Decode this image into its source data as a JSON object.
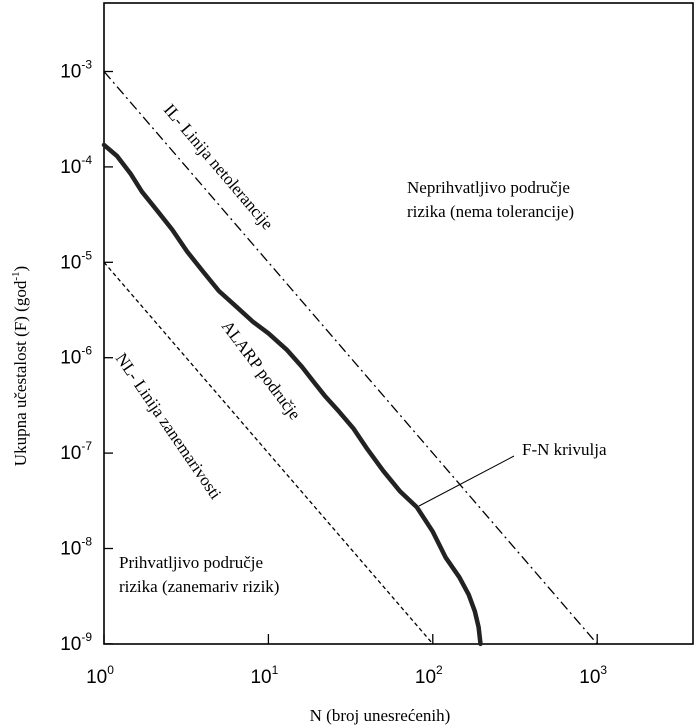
{
  "chart_data": {
    "type": "line",
    "title": "",
    "xlabel": "N (broj unesrećenih)",
    "ylabel": "Ukupna učestalost (F) (god",
    "ylabel_superscript": "-1",
    "ylabel_close": ")",
    "x_scale": "log",
    "y_scale": "log",
    "xlim": [
      1,
      4500
    ],
    "ylim": [
      1e-09,
      0.001
    ],
    "x_ticks": [
      {
        "base": "10",
        "exp": "0",
        "value": 1
      },
      {
        "base": "10",
        "exp": "1",
        "value": 10
      },
      {
        "base": "10",
        "exp": "2",
        "value": 100
      },
      {
        "base": "10",
        "exp": "3",
        "value": 1000
      }
    ],
    "y_ticks": [
      {
        "base": "10",
        "exp": "-3",
        "value": 0.001
      },
      {
        "base": "10",
        "exp": "-4",
        "value": 0.0001
      },
      {
        "base": "10",
        "exp": "-5",
        "value": 1e-05
      },
      {
        "base": "10",
        "exp": "-6",
        "value": 1e-06
      },
      {
        "base": "10",
        "exp": "-7",
        "value": 1e-07
      },
      {
        "base": "10",
        "exp": "-8",
        "value": 1e-08
      },
      {
        "base": "10",
        "exp": "-9",
        "value": 1e-09
      }
    ],
    "grid": false,
    "legend": "none",
    "series": [
      {
        "key": "il",
        "style": "dash-dot",
        "x": [
          1,
          1000
        ],
        "y": [
          0.001,
          1e-09
        ]
      },
      {
        "key": "nl",
        "style": "dashed",
        "x": [
          1,
          100
        ],
        "y": [
          1e-05,
          1e-09
        ]
      },
      {
        "key": "fn",
        "style": "thick-solid",
        "x": [
          1,
          1.2,
          1.45,
          1.7,
          2.1,
          2.6,
          3.2,
          4.0,
          5.0,
          6.3,
          8.0,
          10,
          13,
          16,
          19,
          22,
          27,
          33,
          40,
          50,
          63,
          80,
          100,
          120,
          145,
          165,
          180,
          190,
          195
        ],
        "y": [
          0.00017,
          0.00013,
          8.5e-05,
          5.5e-05,
          3.5e-05,
          2.2e-05,
          1.3e-05,
          8e-06,
          5e-06,
          3.5e-06,
          2.4e-06,
          1.8e-06,
          1.2e-06,
          8e-07,
          5.5e-07,
          4e-07,
          2.7e-07,
          1.8e-07,
          1.1e-07,
          6.5e-08,
          4e-08,
          2.7e-08,
          1.5e-08,
          8e-09,
          5e-09,
          3.3e-09,
          2.2e-09,
          1.5e-09,
          1e-09
        ]
      }
    ],
    "annotations": {
      "il_label": "IL- Linija netolerancije",
      "nl_label": "NL- Linija zanemarivosti",
      "alarp_label": "ALARP područje",
      "unacceptable_line1": "Neprihvatljivo područje",
      "unacceptable_line2": "rizika (nema tolerancije)",
      "acceptable_line1": "Prihvatljivo područje",
      "acceptable_line2": "rizika (zanemariv rizik)",
      "fn_label": "F-N krivulja"
    }
  }
}
